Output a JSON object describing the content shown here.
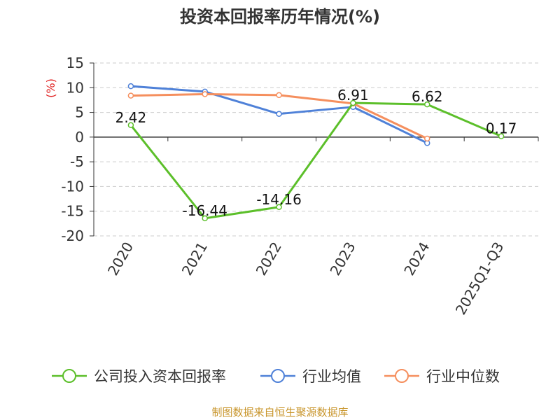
{
  "chart_data": {
    "type": "line",
    "title": "投资本回报率历年情况(%)",
    "ylabel": "(%)",
    "categories": [
      "2020",
      "2021",
      "2022",
      "2023",
      "2024",
      "2025Q1-Q3"
    ],
    "ylim": [
      -20,
      15
    ],
    "yticks": [
      15,
      10,
      5,
      0,
      -5,
      -10,
      -15,
      -20
    ],
    "grid": true,
    "legend_position": "bottom",
    "series": [
      {
        "name": "公司投入资本回报率",
        "color": "#5cbf2a",
        "values": [
          2.42,
          -16.44,
          -14.16,
          6.91,
          6.62,
          0.17
        ],
        "labels": [
          "2.42",
          "-16.44",
          "-14.16",
          "6.91",
          "6.62",
          "0.17"
        ]
      },
      {
        "name": "行业均值",
        "color": "#4f81d8",
        "values": [
          10.3,
          9.2,
          4.7,
          6.1,
          -1.2,
          null
        ]
      },
      {
        "name": "行业中位数",
        "color": "#f58f5e",
        "values": [
          8.4,
          8.7,
          8.5,
          6.8,
          -0.3,
          null
        ]
      }
    ]
  },
  "source": "制图数据来自恒生聚源数据库"
}
